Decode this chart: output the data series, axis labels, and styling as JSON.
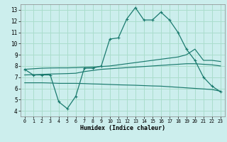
{
  "xlabel": "Humidex (Indice chaleur)",
  "bg_color": "#cceeed",
  "grid_color": "#aaddcc",
  "line_color": "#1a7a6e",
  "x": [
    0,
    1,
    2,
    3,
    4,
    5,
    6,
    7,
    8,
    9,
    10,
    11,
    12,
    13,
    14,
    15,
    16,
    17,
    18,
    19,
    20,
    21,
    22,
    23
  ],
  "line1": [
    7.7,
    7.2,
    7.2,
    7.2,
    4.8,
    4.2,
    5.3,
    7.8,
    7.8,
    8.0,
    10.4,
    10.5,
    12.2,
    13.2,
    12.1,
    12.1,
    12.8,
    12.1,
    11.0,
    9.5,
    8.5,
    7.0,
    6.2,
    5.7
  ],
  "line2": [
    7.7,
    7.75,
    7.8,
    7.82,
    7.83,
    7.83,
    7.85,
    7.88,
    7.9,
    7.95,
    8.0,
    8.1,
    8.2,
    8.3,
    8.4,
    8.5,
    8.6,
    8.7,
    8.8,
    9.0,
    9.5,
    8.5,
    8.5,
    8.4
  ],
  "line3": [
    7.2,
    7.22,
    7.25,
    7.28,
    7.3,
    7.32,
    7.35,
    7.5,
    7.6,
    7.7,
    7.75,
    7.8,
    7.85,
    7.9,
    7.95,
    8.0,
    8.05,
    8.1,
    8.15,
    8.2,
    8.2,
    8.15,
    8.1,
    8.0
  ],
  "line4": [
    6.5,
    6.5,
    6.5,
    6.48,
    6.45,
    6.45,
    6.45,
    6.43,
    6.4,
    6.38,
    6.35,
    6.32,
    6.3,
    6.28,
    6.25,
    6.22,
    6.2,
    6.15,
    6.1,
    6.05,
    6.0,
    5.95,
    5.9,
    5.75
  ],
  "xlim": [
    -0.5,
    23.5
  ],
  "ylim": [
    3.5,
    13.5
  ],
  "yticks": [
    4,
    5,
    6,
    7,
    8,
    9,
    10,
    11,
    12,
    13
  ],
  "xticks": [
    0,
    1,
    2,
    3,
    4,
    5,
    6,
    7,
    8,
    9,
    10,
    11,
    12,
    13,
    14,
    15,
    16,
    17,
    18,
    19,
    20,
    21,
    22,
    23
  ]
}
